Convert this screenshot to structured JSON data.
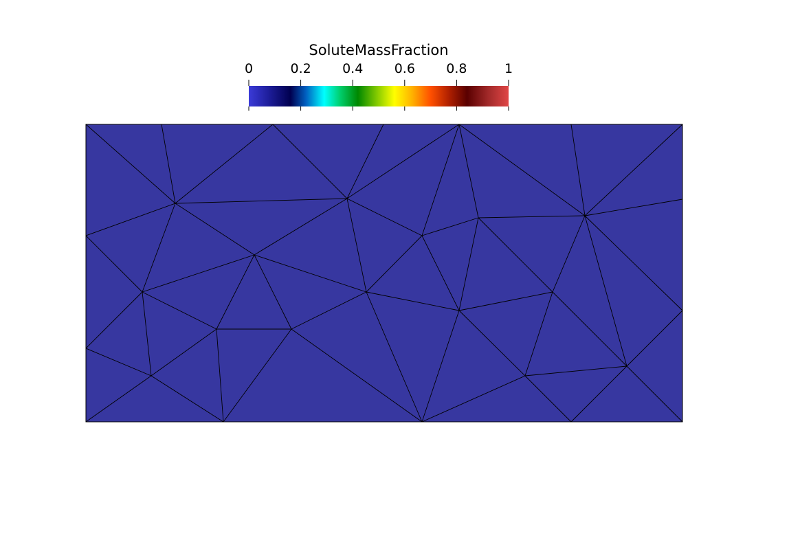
{
  "colorbar": {
    "title": "SoluteMassFraction",
    "ticks": [
      {
        "value": 0,
        "label": "0"
      },
      {
        "value": 0.2,
        "label": "0.2"
      },
      {
        "value": 0.4,
        "label": "0.4"
      },
      {
        "value": 0.6,
        "label": "0.6"
      },
      {
        "value": 0.8,
        "label": "0.8"
      },
      {
        "value": 1,
        "label": "1"
      }
    ],
    "range": [
      0,
      1
    ],
    "colormap": [
      {
        "value": 0.0,
        "color": "#3b3bd8"
      },
      {
        "value": 0.07,
        "color": "#2020a0"
      },
      {
        "value": 0.16,
        "color": "#000050"
      },
      {
        "value": 0.22,
        "color": "#0060c0"
      },
      {
        "value": 0.29,
        "color": "#00ffff"
      },
      {
        "value": 0.35,
        "color": "#00d070"
      },
      {
        "value": 0.42,
        "color": "#008800"
      },
      {
        "value": 0.5,
        "color": "#90d000"
      },
      {
        "value": 0.56,
        "color": "#ffff00"
      },
      {
        "value": 0.63,
        "color": "#ffb000"
      },
      {
        "value": 0.7,
        "color": "#ff5000"
      },
      {
        "value": 0.77,
        "color": "#b02000"
      },
      {
        "value": 0.84,
        "color": "#5a0000"
      },
      {
        "value": 0.92,
        "color": "#a02828"
      },
      {
        "value": 1.0,
        "color": "#e04646"
      }
    ]
  },
  "mesh": {
    "field_value": 0,
    "fill_color": "#3737a0",
    "edge_color": "#000000"
  }
}
